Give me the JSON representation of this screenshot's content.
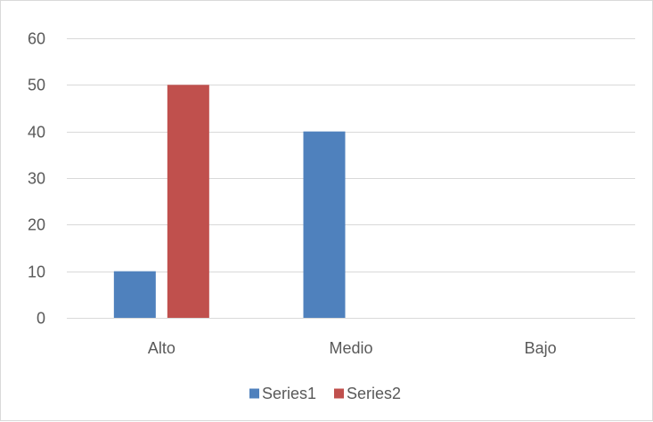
{
  "chart_data": {
    "type": "bar",
    "title": "",
    "xlabel": "",
    "ylabel": "",
    "categories": [
      "Alto",
      "Medio",
      "Bajo"
    ],
    "series": [
      {
        "name": "Series1",
        "color": "#4f81bd",
        "values": [
          10,
          40,
          0
        ]
      },
      {
        "name": "Series2",
        "color": "#c0504d",
        "values": [
          50,
          0,
          0
        ]
      }
    ],
    "ylim": [
      0,
      60
    ],
    "yticks": [
      0,
      10,
      20,
      30,
      40,
      50,
      60
    ],
    "ytick_labels": [
      "0",
      "10",
      "20",
      "30",
      "40",
      "50",
      "60"
    ],
    "grid": true,
    "gridline_color": "#d9d9d9",
    "legend": "bottom"
  }
}
